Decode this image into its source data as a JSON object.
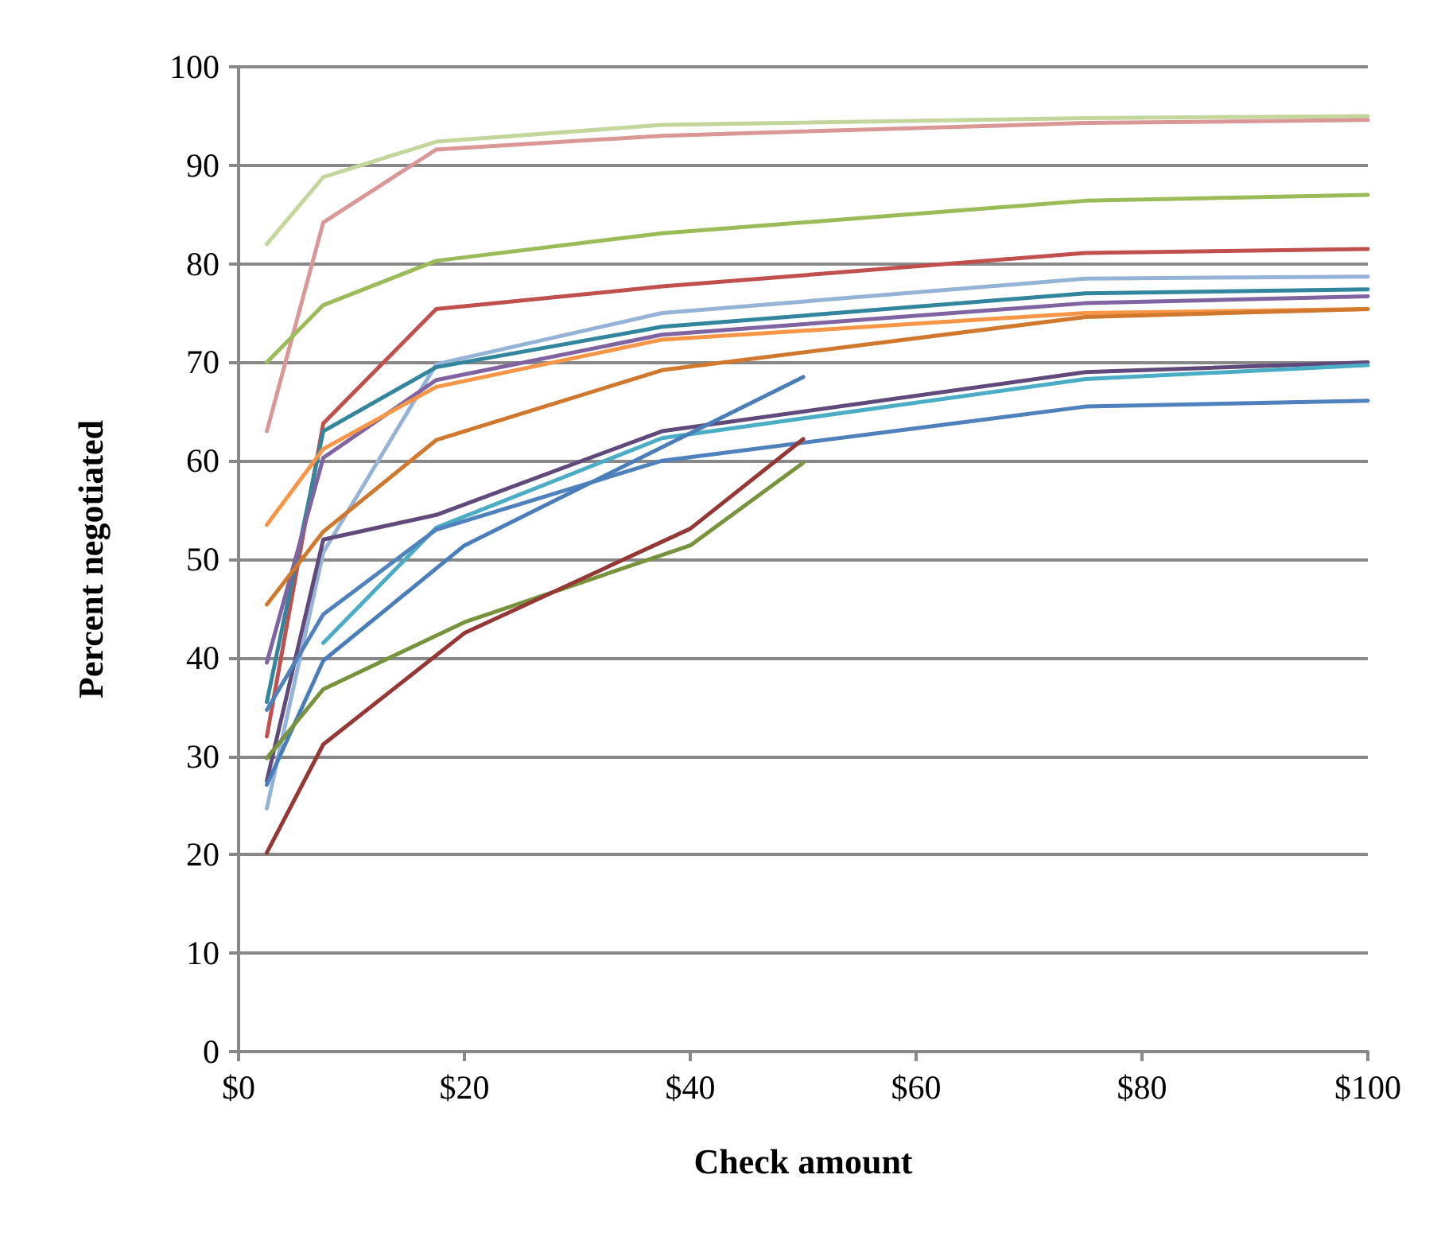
{
  "chart_data": {
    "type": "line",
    "xlabel": "Check amount",
    "ylabel": "Percent negotiated",
    "x": [
      2.5,
      7.5,
      17.5,
      37.5,
      75,
      100
    ],
    "series": [
      {
        "color": "#c3d69b",
        "values": [
          82,
          88.8,
          92.4,
          94.1,
          94.8,
          95.0
        ]
      },
      {
        "color": "#d99795",
        "values": [
          63,
          84.2,
          91.6,
          93.0,
          94.3,
          94.6
        ]
      },
      {
        "color": "#9bbb59",
        "values": [
          70,
          75.8,
          80.3,
          83.1,
          86.4,
          87.0
        ]
      },
      {
        "color": "#c0504d",
        "values": [
          32,
          63.8,
          75.4,
          77.7,
          81.1,
          81.5
        ]
      },
      {
        "color": "#95b3d7",
        "values": [
          24.7,
          50.7,
          69.8,
          75.0,
          78.5,
          78.7
        ]
      },
      {
        "color": "#31859c",
        "values": [
          35.5,
          63.0,
          69.5,
          73.6,
          77.0,
          77.4
        ]
      },
      {
        "color": "#8064a2",
        "values": [
          39.5,
          60.3,
          68.2,
          72.8,
          76.0,
          76.7
        ]
      },
      {
        "color": "#f79646",
        "values": [
          53.5,
          61.2,
          67.5,
          72.3,
          75.0,
          75.4
        ]
      },
      {
        "color": "#d0792e",
        "values": [
          45.4,
          52.8,
          62.1,
          69.2,
          74.6,
          75.4
        ]
      },
      {
        "color": "#604a7b",
        "values": [
          27.5,
          52.0,
          54.5,
          63.0,
          69.0,
          70.0
        ]
      },
      {
        "color": "#4bacc6",
        "x": [
          7.5,
          17.5,
          37.5,
          75,
          100
        ],
        "values": [
          41.5,
          53.2,
          62.3,
          68.3,
          69.7
        ]
      },
      {
        "color": "#4f81bd",
        "values": [
          34.7,
          44.4,
          53.0,
          60.0,
          65.5,
          66.1
        ]
      },
      {
        "color": "#4a7ebb",
        "x": [
          2.5,
          7.5,
          20,
          50
        ],
        "values": [
          27.1,
          39.7,
          51.4,
          68.5
        ]
      },
      {
        "color": "#77933c",
        "x": [
          2.5,
          7.5,
          20,
          40,
          50
        ],
        "values": [
          29.8,
          36.8,
          43.6,
          51.4,
          59.8
        ]
      },
      {
        "color": "#953735",
        "x": [
          2.5,
          7.5,
          20,
          40,
          50
        ],
        "values": [
          20.2,
          31.2,
          42.5,
          53.1,
          62.2
        ]
      }
    ],
    "xlim": [
      0,
      100
    ],
    "xticks": [
      {
        "value": 0,
        "label": "$0"
      },
      {
        "value": 20,
        "label": "$20"
      },
      {
        "value": 40,
        "label": "$40"
      },
      {
        "value": 60,
        "label": "$60"
      },
      {
        "value": 80,
        "label": "$80"
      },
      {
        "value": 100,
        "label": "$100"
      }
    ],
    "ylim": [
      0,
      100
    ],
    "yticks": [
      0,
      10,
      20,
      30,
      40,
      50,
      60,
      70,
      80,
      90,
      100
    ],
    "grid": "y",
    "marker": "none",
    "line_style": "solid"
  }
}
